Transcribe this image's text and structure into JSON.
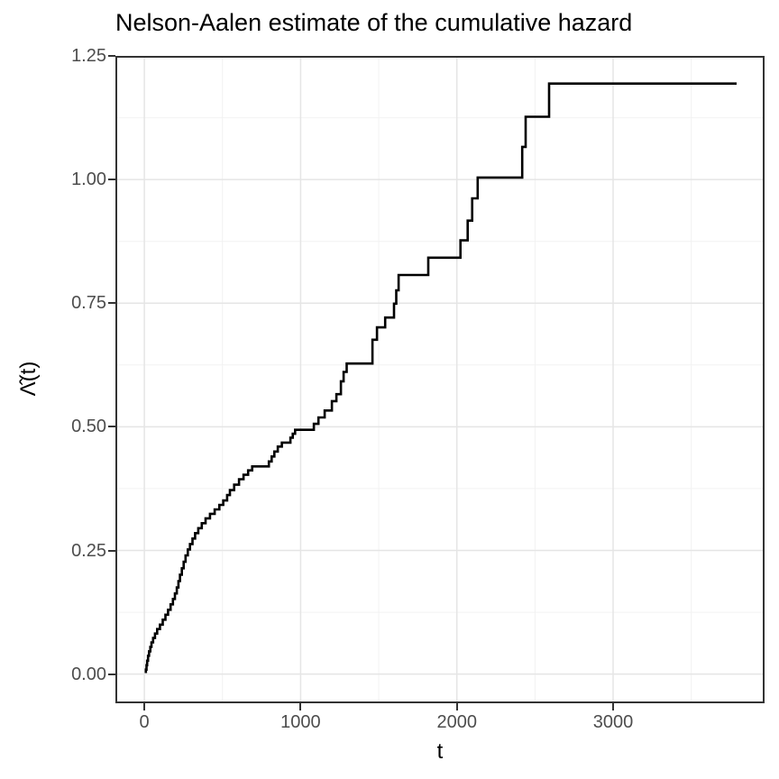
{
  "colors": {
    "background": "#ffffff",
    "panel_background": "#ffffff",
    "panel_border": "#333333",
    "grid_major": "#e5e5e5",
    "grid_minor": "#f2f2f2",
    "tick_mark": "#333333",
    "tick_label": "#4d4d4d",
    "title": "#000000",
    "line": "#000000"
  },
  "chart_data": {
    "type": "line",
    "subtype": "step",
    "title": "Nelson-Aalen estimate of the cumulative hazard",
    "xlabel": "t",
    "ylabel": "Λ̂(t)",
    "xlim": [
      -185,
      3969
    ],
    "ylim": [
      -0.059,
      1.25
    ],
    "grid": "on",
    "legend": "none",
    "x_ticks_major": [
      0,
      1000,
      2000,
      3000
    ],
    "x_ticks_minor": [
      500,
      1500,
      2500,
      3500
    ],
    "x_tick_labels": [
      "0",
      "1000",
      "2000",
      "3000"
    ],
    "y_ticks_major": [
      0,
      0.25,
      0.5,
      0.75,
      1.0,
      1.25
    ],
    "y_ticks_minor": [
      0.125,
      0.375,
      0.625,
      0.875,
      1.125
    ],
    "y_tick_labels": [
      "0.00",
      "0.25",
      "0.50",
      "0.75",
      "1.00",
      "1.25"
    ],
    "line_width": 2.6,
    "series": [
      {
        "name": "nelson-aalen-cumulative-hazard",
        "start": [
          10,
          0.002
        ],
        "end_t": 3790,
        "points": [
          [
            10,
            0.009
          ],
          [
            14,
            0.018
          ],
          [
            18,
            0.027
          ],
          [
            24,
            0.037
          ],
          [
            30,
            0.046
          ],
          [
            38,
            0.055
          ],
          [
            46,
            0.064
          ],
          [
            56,
            0.073
          ],
          [
            68,
            0.082
          ],
          [
            82,
            0.091
          ],
          [
            100,
            0.1
          ],
          [
            118,
            0.11
          ],
          [
            135,
            0.12
          ],
          [
            152,
            0.13
          ],
          [
            168,
            0.141
          ],
          [
            183,
            0.152
          ],
          [
            196,
            0.163
          ],
          [
            208,
            0.175
          ],
          [
            218,
            0.188
          ],
          [
            228,
            0.201
          ],
          [
            240,
            0.214
          ],
          [
            252,
            0.227
          ],
          [
            264,
            0.24
          ],
          [
            278,
            0.252
          ],
          [
            292,
            0.263
          ],
          [
            308,
            0.274
          ],
          [
            325,
            0.285
          ],
          [
            345,
            0.295
          ],
          [
            368,
            0.305
          ],
          [
            392,
            0.315
          ],
          [
            420,
            0.324
          ],
          [
            450,
            0.333
          ],
          [
            480,
            0.342
          ],
          [
            505,
            0.351
          ],
          [
            530,
            0.362
          ],
          [
            548,
            0.372
          ],
          [
            575,
            0.383
          ],
          [
            606,
            0.394
          ],
          [
            635,
            0.403
          ],
          [
            664,
            0.412
          ],
          [
            690,
            0.42
          ],
          [
            797,
            0.43
          ],
          [
            815,
            0.44
          ],
          [
            832,
            0.45
          ],
          [
            854,
            0.46
          ],
          [
            880,
            0.468
          ],
          [
            935,
            0.478
          ],
          [
            950,
            0.486
          ],
          [
            965,
            0.494
          ],
          [
            1085,
            0.506
          ],
          [
            1114,
            0.519
          ],
          [
            1154,
            0.533
          ],
          [
            1200,
            0.552
          ],
          [
            1229,
            0.566
          ],
          [
            1258,
            0.592
          ],
          [
            1275,
            0.611
          ],
          [
            1295,
            0.628
          ],
          [
            1460,
            0.676
          ],
          [
            1489,
            0.701
          ],
          [
            1541,
            0.721
          ],
          [
            1598,
            0.749
          ],
          [
            1612,
            0.776
          ],
          [
            1627,
            0.807
          ],
          [
            1817,
            0.842
          ],
          [
            2023,
            0.877
          ],
          [
            2069,
            0.917
          ],
          [
            2098,
            0.962
          ],
          [
            2133,
            1.004
          ],
          [
            2418,
            1.066
          ],
          [
            2440,
            1.127
          ],
          [
            2590,
            1.194
          ]
        ]
      }
    ]
  }
}
